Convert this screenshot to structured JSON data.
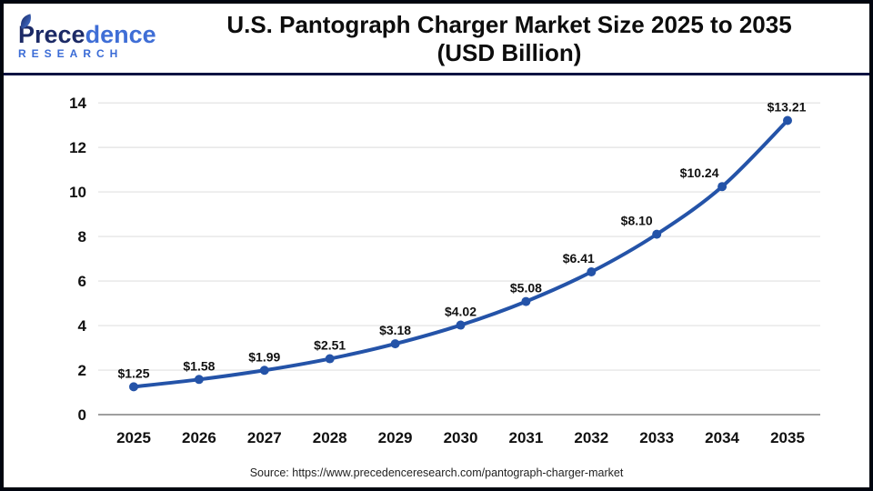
{
  "header": {
    "logo": {
      "part1": "Prece",
      "part2": "dence",
      "sub": "RESEARCH"
    },
    "title_line1": "U.S. Pantograph Charger Market Size 2025 to 2035",
    "title_line2": "(USD Billion)"
  },
  "source": "Source: https://www.precedenceresearch.com/pantograph-charger-market",
  "colors": {
    "line": "#2453a8",
    "marker": "#2453a8",
    "grid": "#e6e6e6",
    "zero_line": "#9f9f9f",
    "axis_text": "#111111",
    "data_label": "#111111",
    "header_divider": "#0d1342",
    "logo_dark": "#1c2a66",
    "logo_light": "#3f6ed6"
  },
  "chart_data": {
    "type": "line",
    "title": "U.S. Pantograph Charger Market Size 2025 to 2035 (USD Billion)",
    "categories": [
      "2025",
      "2026",
      "2027",
      "2028",
      "2029",
      "2030",
      "2031",
      "2032",
      "2033",
      "2034",
      "2035"
    ],
    "values": [
      1.25,
      1.58,
      1.99,
      2.51,
      3.18,
      4.02,
      5.08,
      6.41,
      8.1,
      10.24,
      13.21
    ],
    "labels": [
      "$1.25",
      "$1.58",
      "$1.99",
      "$2.51",
      "$3.18",
      "$4.02",
      "$5.08",
      "$6.41",
      "$8.10",
      "$10.24",
      "$13.21"
    ],
    "xlabel": "",
    "ylabel": "",
    "ylim": [
      0,
      14
    ],
    "yticks": [
      0,
      2,
      4,
      6,
      8,
      10,
      12,
      14
    ],
    "grid": true,
    "legend": false
  }
}
